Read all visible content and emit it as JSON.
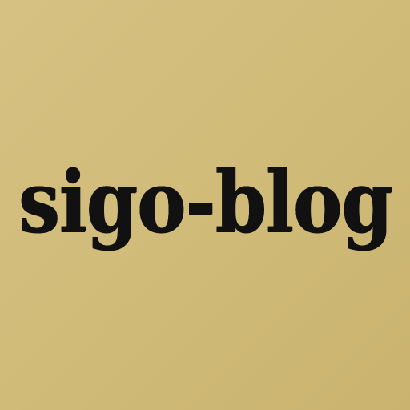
{
  "logo": {
    "text": "sigo-blog",
    "text_color": "#111111",
    "background_color": "#d2bc7b"
  }
}
